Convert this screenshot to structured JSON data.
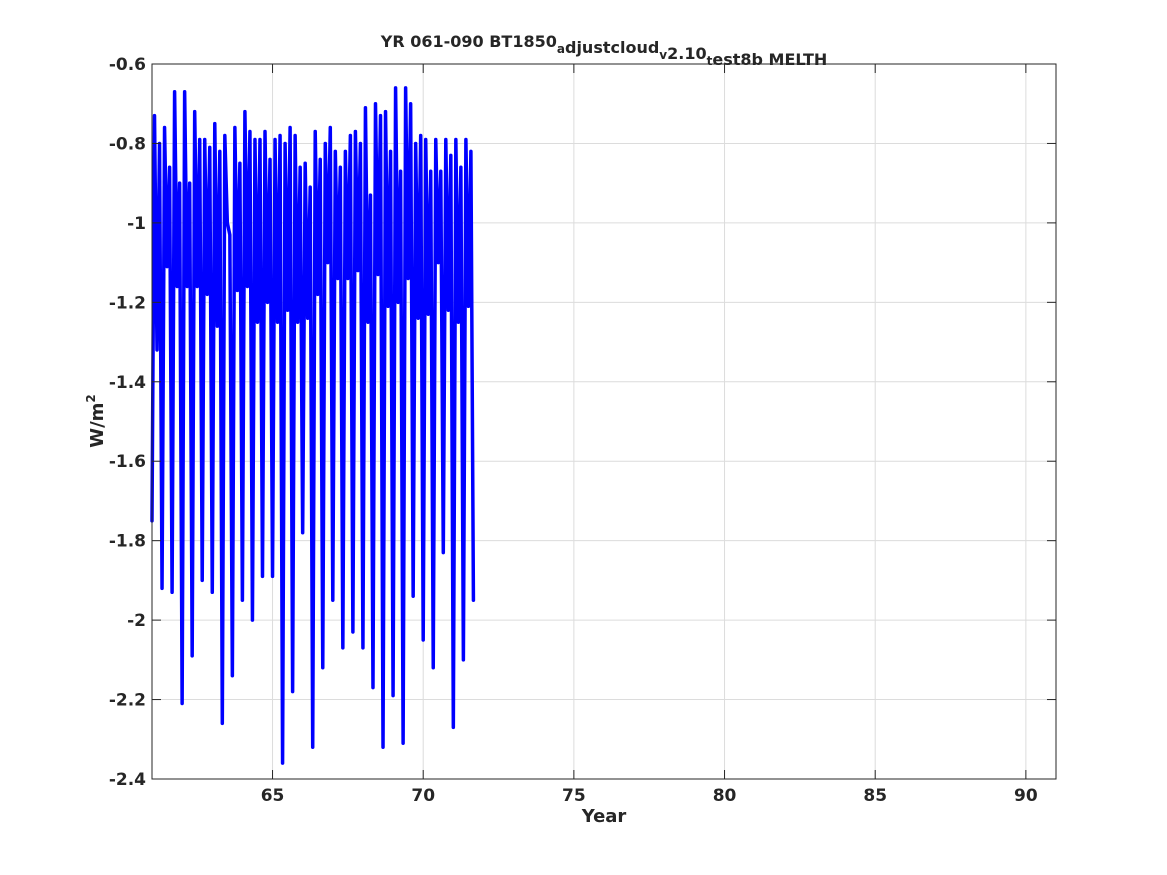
{
  "chart_data": {
    "type": "line",
    "title_parts": [
      {
        "text": "YR 061-090 BT1850",
        "sub": false
      },
      {
        "text": "a",
        "sub": true
      },
      {
        "text": "djustcloud",
        "sub": false
      },
      {
        "text": "v",
        "sub": true
      },
      {
        "text": "2.10",
        "sub": false
      },
      {
        "text": "t",
        "sub": true
      },
      {
        "text": "est8b MELTH",
        "sub": false
      }
    ],
    "xlabel": "Year",
    "ylabel_base": "W/m",
    "ylabel_sup": "2",
    "xlim": [
      61,
      91
    ],
    "ylim": [
      -2.4,
      -0.6
    ],
    "xticks": [
      65,
      70,
      75,
      80,
      85,
      90
    ],
    "xtick_labels": [
      "65",
      "70",
      "75",
      "80",
      "85",
      "90"
    ],
    "yticks": [
      -2.4,
      -2.2,
      -2.0,
      -1.8,
      -1.6,
      -1.4,
      -1.2,
      -1.0,
      -0.8,
      -0.6
    ],
    "ytick_labels": [
      "-2.4",
      "-2.2",
      "-2",
      "-1.8",
      "-1.6",
      "-1.4",
      "-1.2",
      "-1",
      "-0.8",
      "-0.6"
    ],
    "grid": true,
    "line_color": "#0000ff",
    "series": [
      {
        "x_start": 61.0,
        "x_step": 0.0833333,
        "values": [
          -1.75,
          -0.73,
          -1.32,
          -0.8,
          -1.92,
          -0.76,
          -1.11,
          -0.86,
          -1.93,
          -0.67,
          -1.16,
          -0.9,
          -2.21,
          -0.67,
          -1.16,
          -0.9,
          -2.09,
          -0.72,
          -1.16,
          -0.79,
          -1.9,
          -0.79,
          -1.18,
          -0.81,
          -1.93,
          -0.75,
          -1.26,
          -0.82,
          -2.26,
          -0.78,
          -1.0,
          -1.03,
          -2.14,
          -0.76,
          -1.17,
          -0.85,
          -1.95,
          -0.72,
          -1.16,
          -0.77,
          -2.0,
          -0.79,
          -1.25,
          -0.79,
          -1.89,
          -0.77,
          -1.2,
          -0.84,
          -1.89,
          -0.79,
          -1.25,
          -0.78,
          -2.36,
          -0.8,
          -1.22,
          -0.76,
          -2.18,
          -0.78,
          -1.25,
          -0.86,
          -1.78,
          -0.85,
          -1.24,
          -0.91,
          -2.32,
          -0.77,
          -1.18,
          -0.84,
          -2.12,
          -0.8,
          -1.1,
          -0.76,
          -1.95,
          -0.82,
          -1.14,
          -0.86,
          -2.07,
          -0.82,
          -1.14,
          -0.78,
          -2.03,
          -0.77,
          -1.12,
          -0.8,
          -2.07,
          -0.71,
          -1.25,
          -0.93,
          -2.17,
          -0.7,
          -1.13,
          -0.73,
          -2.32,
          -0.72,
          -1.21,
          -0.82,
          -2.19,
          -0.66,
          -1.2,
          -0.87,
          -2.31,
          -0.66,
          -1.14,
          -0.7,
          -1.94,
          -0.8,
          -1.24,
          -0.78,
          -2.05,
          -0.79,
          -1.23,
          -0.87,
          -2.12,
          -0.79,
          -1.1,
          -0.87,
          -1.83,
          -0.79,
          -1.22,
          -0.83,
          -2.27,
          -0.79,
          -1.25,
          -0.86,
          -2.1,
          -0.79,
          -1.21,
          -0.82,
          -1.95
        ]
      }
    ]
  }
}
